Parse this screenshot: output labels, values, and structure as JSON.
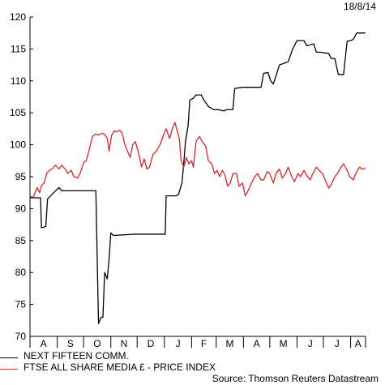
{
  "header": {
    "date": "18/8/14"
  },
  "source": "Source: Thomson Reuters Datastream",
  "chart_data": {
    "type": "line",
    "title": "",
    "xlabel": "",
    "ylabel": "",
    "x_range": [
      "2013-08-01",
      "2014-08-18"
    ],
    "ylim": [
      70,
      120
    ],
    "yticks": [
      70,
      75,
      80,
      85,
      90,
      95,
      100,
      105,
      110,
      115,
      120
    ],
    "month_labels": [
      "A",
      "S",
      "O",
      "N",
      "D",
      "J",
      "F",
      "M",
      "A",
      "M",
      "J",
      "J",
      "A"
    ],
    "month_starts": [
      "2013-08-01",
      "2013-09-01",
      "2013-10-01",
      "2013-11-01",
      "2013-12-01",
      "2014-01-01",
      "2014-02-01",
      "2014-03-01",
      "2014-04-01",
      "2014-05-01",
      "2014-06-01",
      "2014-07-01",
      "2014-08-01",
      "2014-08-18"
    ],
    "grid": false,
    "legend_position": "bottom-left",
    "series": [
      {
        "name": "NEXT FIFTEEN COMM.",
        "color": "#000000",
        "points": [
          [
            "2013-08-01",
            91.7
          ],
          [
            "2013-08-13",
            91.7
          ],
          [
            "2013-08-14",
            87.0
          ],
          [
            "2013-08-19",
            87.2
          ],
          [
            "2013-08-21",
            91.5
          ],
          [
            "2013-08-28",
            92.5
          ],
          [
            "2013-09-03",
            93.3
          ],
          [
            "2013-09-06",
            92.8
          ],
          [
            "2013-09-20",
            92.8
          ],
          [
            "2013-10-01",
            92.8
          ],
          [
            "2013-10-15",
            92.8
          ],
          [
            "2013-10-18",
            72.0
          ],
          [
            "2013-10-21",
            73.0
          ],
          [
            "2013-10-23",
            73.0
          ],
          [
            "2013-10-25",
            80.0
          ],
          [
            "2013-10-28",
            79.0
          ],
          [
            "2013-10-30",
            82.0
          ],
          [
            "2013-11-01",
            86.2
          ],
          [
            "2013-11-04",
            85.8
          ],
          [
            "2013-11-28",
            86.0
          ],
          [
            "2013-12-10",
            86.0
          ],
          [
            "2013-12-26",
            86.0
          ],
          [
            "2013-12-31",
            86.0
          ],
          [
            "2014-01-02",
            86.0
          ],
          [
            "2014-01-03",
            92.0
          ],
          [
            "2014-01-14",
            92.0
          ],
          [
            "2014-01-17",
            92.2
          ],
          [
            "2014-01-21",
            94.0
          ],
          [
            "2014-01-23",
            97.0
          ],
          [
            "2014-01-25",
            100.5
          ],
          [
            "2014-01-28",
            103.0
          ],
          [
            "2014-01-30",
            107.0
          ],
          [
            "2014-02-03",
            107.3
          ],
          [
            "2014-02-06",
            107.8
          ],
          [
            "2014-02-12",
            107.8
          ],
          [
            "2014-02-15",
            107.0
          ],
          [
            "2014-02-20",
            106.0
          ],
          [
            "2014-02-26",
            105.5
          ],
          [
            "2014-03-03",
            105.5
          ],
          [
            "2014-03-10",
            105.3
          ],
          [
            "2014-03-13",
            105.5
          ],
          [
            "2014-03-20",
            105.5
          ],
          [
            "2014-03-22",
            108.8
          ],
          [
            "2014-03-31",
            109.0
          ],
          [
            "2014-04-18",
            109.0
          ],
          [
            "2014-04-21",
            109.0
          ],
          [
            "2014-04-24",
            111.2
          ],
          [
            "2014-04-29",
            111.3
          ],
          [
            "2014-05-02",
            110.0
          ],
          [
            "2014-05-05",
            109.5
          ],
          [
            "2014-05-12",
            112.5
          ],
          [
            "2014-05-22",
            113.0
          ],
          [
            "2014-05-27",
            115.0
          ],
          [
            "2014-06-01",
            116.3
          ],
          [
            "2014-06-09",
            116.3
          ],
          [
            "2014-06-12",
            115.5
          ],
          [
            "2014-06-20",
            115.8
          ],
          [
            "2014-06-23",
            114.5
          ],
          [
            "2014-06-27",
            114.5
          ],
          [
            "2014-07-07",
            114.3
          ],
          [
            "2014-07-10",
            113.5
          ],
          [
            "2014-07-14",
            113.5
          ],
          [
            "2014-07-18",
            111.0
          ],
          [
            "2014-07-24",
            111.0
          ],
          [
            "2014-07-28",
            116.2
          ],
          [
            "2014-08-01",
            116.3
          ],
          [
            "2014-08-04",
            116.5
          ],
          [
            "2014-08-08",
            117.5
          ],
          [
            "2014-08-18",
            117.5
          ]
        ]
      },
      {
        "name": "FTSE ALL SHARE MEDIA £ - PRICE INDEX",
        "color": "#d62728",
        "points": [
          [
            "2013-08-01",
            91.9
          ],
          [
            "2013-08-05",
            91.8
          ],
          [
            "2013-08-07",
            92.6
          ],
          [
            "2013-08-09",
            93.3
          ],
          [
            "2013-08-12",
            92.5
          ],
          [
            "2013-08-14",
            93.6
          ],
          [
            "2013-08-17",
            94.0
          ],
          [
            "2013-08-20",
            95.5
          ],
          [
            "2013-08-23",
            96.0
          ],
          [
            "2013-08-27",
            96.3
          ],
          [
            "2013-08-30",
            96.8
          ],
          [
            "2013-09-03",
            96.2
          ],
          [
            "2013-09-06",
            96.8
          ],
          [
            "2013-09-10",
            96.2
          ],
          [
            "2013-09-13",
            95.5
          ],
          [
            "2013-09-17",
            96.0
          ],
          [
            "2013-09-20",
            95.0
          ],
          [
            "2013-09-24",
            94.8
          ],
          [
            "2013-09-27",
            95.5
          ],
          [
            "2013-10-01",
            97.2
          ],
          [
            "2013-10-04",
            97.5
          ],
          [
            "2013-10-08",
            99.5
          ],
          [
            "2013-10-11",
            101.3
          ],
          [
            "2013-10-15",
            101.7
          ],
          [
            "2013-10-18",
            101.5
          ],
          [
            "2013-10-22",
            101.8
          ],
          [
            "2013-10-25",
            101.6
          ],
          [
            "2013-10-28",
            101.0
          ],
          [
            "2013-10-30",
            99.0
          ],
          [
            "2013-11-02",
            101.5
          ],
          [
            "2013-11-05",
            102.2
          ],
          [
            "2013-11-08",
            102.0
          ],
          [
            "2013-11-11",
            102.3
          ],
          [
            "2013-11-14",
            101.8
          ],
          [
            "2013-11-17",
            100.0
          ],
          [
            "2013-11-20",
            99.0
          ],
          [
            "2013-11-23",
            98.0
          ],
          [
            "2013-11-26",
            100.0
          ],
          [
            "2013-11-29",
            100.5
          ],
          [
            "2013-12-03",
            98.5
          ],
          [
            "2013-12-06",
            96.5
          ],
          [
            "2013-12-09",
            97.8
          ],
          [
            "2013-12-12",
            96.2
          ],
          [
            "2013-12-15",
            96.5
          ],
          [
            "2013-12-19",
            98.5
          ],
          [
            "2013-12-23",
            99.0
          ],
          [
            "2013-12-27",
            100.0
          ],
          [
            "2013-12-31",
            101.5
          ],
          [
            "2014-01-03",
            102.5
          ],
          [
            "2014-01-07",
            101.0
          ],
          [
            "2014-01-10",
            102.5
          ],
          [
            "2014-01-13",
            103.5
          ],
          [
            "2014-01-16",
            102.0
          ],
          [
            "2014-01-18",
            101.0
          ],
          [
            "2014-01-20",
            97.5
          ],
          [
            "2014-01-23",
            96.5
          ],
          [
            "2014-01-26",
            98.0
          ],
          [
            "2014-01-29",
            97.0
          ],
          [
            "2014-02-01",
            97.5
          ],
          [
            "2014-02-03",
            96.5
          ],
          [
            "2014-02-06",
            100.5
          ],
          [
            "2014-02-10",
            101.3
          ],
          [
            "2014-02-13",
            100.5
          ],
          [
            "2014-02-17",
            99.8
          ],
          [
            "2014-02-20",
            97.5
          ],
          [
            "2014-02-24",
            97.0
          ],
          [
            "2014-02-27",
            95.5
          ],
          [
            "2014-03-02",
            96.0
          ],
          [
            "2014-03-05",
            95.0
          ],
          [
            "2014-03-08",
            96.0
          ],
          [
            "2014-03-11",
            95.2
          ],
          [
            "2014-03-14",
            93.5
          ],
          [
            "2014-03-17",
            94.0
          ],
          [
            "2014-03-20",
            95.5
          ],
          [
            "2014-03-24",
            95.5
          ],
          [
            "2014-03-27",
            93.5
          ],
          [
            "2014-03-31",
            94.0
          ],
          [
            "2014-04-03",
            92.0
          ],
          [
            "2014-04-07",
            93.0
          ],
          [
            "2014-04-10",
            94.0
          ],
          [
            "2014-04-14",
            95.0
          ],
          [
            "2014-04-17",
            95.5
          ],
          [
            "2014-04-21",
            94.5
          ],
          [
            "2014-04-24",
            94.5
          ],
          [
            "2014-04-28",
            95.8
          ],
          [
            "2014-05-01",
            95.5
          ],
          [
            "2014-05-05",
            94.0
          ],
          [
            "2014-05-08",
            95.5
          ],
          [
            "2014-05-12",
            96.2
          ],
          [
            "2014-05-15",
            94.8
          ],
          [
            "2014-05-19",
            95.5
          ],
          [
            "2014-05-22",
            96.5
          ],
          [
            "2014-05-26",
            95.0
          ],
          [
            "2014-05-29",
            94.2
          ],
          [
            "2014-06-02",
            95.5
          ],
          [
            "2014-06-05",
            95.0
          ],
          [
            "2014-06-09",
            96.0
          ],
          [
            "2014-06-12",
            95.2
          ],
          [
            "2014-06-16",
            94.5
          ],
          [
            "2014-06-19",
            95.5
          ],
          [
            "2014-06-23",
            96.5
          ],
          [
            "2014-06-26",
            96.0
          ],
          [
            "2014-06-30",
            95.5
          ],
          [
            "2014-07-03",
            94.5
          ],
          [
            "2014-07-07",
            93.2
          ],
          [
            "2014-07-10",
            93.8
          ],
          [
            "2014-07-14",
            95.0
          ],
          [
            "2014-07-17",
            95.5
          ],
          [
            "2014-07-21",
            96.5
          ],
          [
            "2014-07-24",
            97.0
          ],
          [
            "2014-07-28",
            96.0
          ],
          [
            "2014-07-31",
            95.0
          ],
          [
            "2014-08-04",
            94.5
          ],
          [
            "2014-08-07",
            95.5
          ],
          [
            "2014-08-11",
            96.5
          ],
          [
            "2014-08-14",
            96.2
          ],
          [
            "2014-08-18",
            96.3
          ]
        ]
      }
    ]
  }
}
